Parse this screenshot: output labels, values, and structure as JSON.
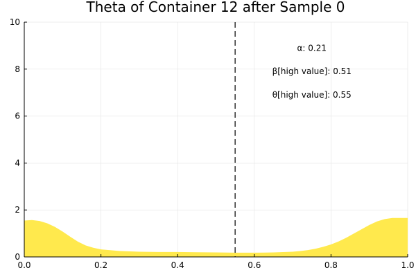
{
  "chart_data": {
    "type": "area",
    "title": "Theta of Container 12 after Sample 0",
    "xlabel": "",
    "ylabel": "",
    "xlim": [
      0,
      1
    ],
    "ylim": [
      0,
      10
    ],
    "xticks": [
      0.0,
      0.2,
      0.4,
      0.6,
      0.8,
      1.0
    ],
    "xtick_labels": [
      "0.0",
      "0.2",
      "0.4",
      "0.6",
      "0.8",
      "1.0"
    ],
    "yticks": [
      0,
      2,
      4,
      6,
      8,
      10
    ],
    "ytick_labels": [
      "0",
      "2",
      "4",
      "6",
      "8",
      "10"
    ],
    "grid": true,
    "legend": "none",
    "fill_color": "#FFE94D",
    "vline": {
      "x": 0.55,
      "style": "dashed",
      "color": "#333333"
    },
    "series": [
      {
        "x": [
          0.0,
          0.02,
          0.04,
          0.06,
          0.08,
          0.1,
          0.12,
          0.14,
          0.16,
          0.18,
          0.2,
          0.25,
          0.3,
          0.35,
          0.4,
          0.45,
          0.5,
          0.55,
          0.6,
          0.65,
          0.7,
          0.72,
          0.74,
          0.76,
          0.78,
          0.8,
          0.82,
          0.84,
          0.86,
          0.88,
          0.9,
          0.92,
          0.94,
          0.96,
          0.98,
          1.0
        ],
        "y": [
          1.55,
          1.57,
          1.53,
          1.43,
          1.28,
          1.08,
          0.86,
          0.65,
          0.49,
          0.39,
          0.32,
          0.25,
          0.22,
          0.21,
          0.21,
          0.2,
          0.19,
          0.18,
          0.18,
          0.19,
          0.22,
          0.25,
          0.29,
          0.35,
          0.43,
          0.53,
          0.66,
          0.82,
          1.0,
          1.18,
          1.36,
          1.51,
          1.61,
          1.66,
          1.66,
          1.66
        ]
      }
    ],
    "annotations": [
      {
        "text": "α: 0.21",
        "x": 0.75,
        "y": 8.9
      },
      {
        "text": "β[high value]: 0.51",
        "x": 0.75,
        "y": 7.9
      },
      {
        "text": "θ[high value]: 0.55",
        "x": 0.75,
        "y": 6.9
      }
    ]
  }
}
